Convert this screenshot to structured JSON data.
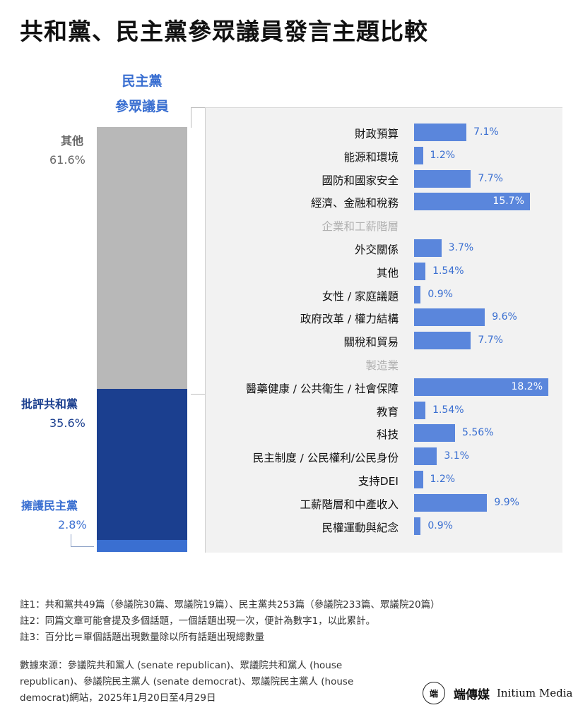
{
  "title": "共和黨、民主黨參眾議員發言主題比較",
  "stack": {
    "title_line1": "民主黨",
    "title_line2": "參眾議員"
  },
  "chart_data": [
    {
      "type": "bar",
      "stacked": true,
      "orientation": "vertical",
      "categories": [
        "民主黨參眾議員"
      ],
      "series": [
        {
          "name": "其他",
          "values": [
            61.6
          ],
          "label": "61.6%",
          "color": "#b8b8b8"
        },
        {
          "name": "批評共和黨",
          "values": [
            35.6
          ],
          "label": "35.6%",
          "color": "#1b3f8f"
        },
        {
          "name": "擁護民主黨",
          "values": [
            2.8
          ],
          "label": "2.8%",
          "color": "#3a6fd1"
        }
      ],
      "ylim": [
        0,
        100
      ]
    },
    {
      "type": "bar",
      "orientation": "horizontal",
      "categories": [
        "財政預算",
        "能源和環境",
        "國防和國家安全",
        "經濟、金融和稅務",
        "企業和工薪階層",
        "外交關係",
        "其他",
        "女性 / 家庭議題",
        "政府改革 / 權力結構",
        "關稅和貿易",
        "製造業",
        "醫藥健康 / 公共衛生 / 社會保障",
        "教育",
        "科技",
        "民主制度 / 公民權利/公民身份",
        "支持DEI",
        "工薪階層和中產收入",
        "民權運動與紀念"
      ],
      "values": [
        7.1,
        1.2,
        7.7,
        15.7,
        null,
        3.7,
        1.54,
        0.9,
        9.6,
        7.7,
        null,
        18.2,
        1.54,
        5.56,
        3.1,
        1.2,
        9.9,
        0.9
      ],
      "value_labels": [
        "7.1%",
        "1.2%",
        "7.7%",
        "15.7%",
        "",
        "3.7%",
        "1.54%",
        "0.9%",
        "9.6%",
        "7.7%",
        "",
        "18.2%",
        "1.54%",
        "5.56%",
        "3.1%",
        "1.2%",
        "9.9%",
        "0.9%"
      ],
      "xlim": [
        0,
        18.2
      ],
      "bar_color": "#5a86dc",
      "muted_color": "#b0b0b0"
    }
  ],
  "notes": [
    "註1：共和黨共49篇（參議院30篇、眾議院19篇）、民主黨共253篇（參議院233篇、眾議院20篇）",
    "註2：同篇文章可能會提及多個話題，一個話題出現一次，便計為數字1，以此累計。",
    "註3：百分比＝單個話題出現數量除以所有話題出現總數量"
  ],
  "source": "數據來源：參議院共和黨人 (senate republican)、眾議院共和黨人 (house republican)、參議院民主黨人 (senate democrat)、眾議院民主黨人 (house democrat)網站，2025年1月20日至4月29日",
  "logo": {
    "icon_text": "端",
    "cn": "端傳媒",
    "en": "Initium Media"
  }
}
